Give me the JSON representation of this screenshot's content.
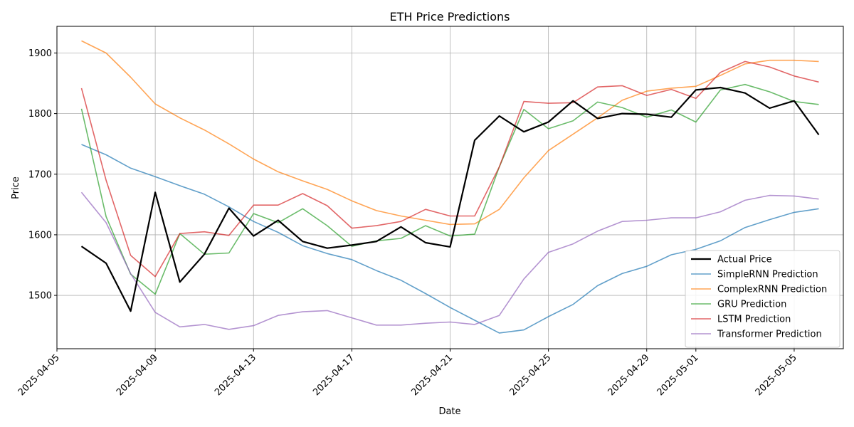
{
  "chart_data": {
    "type": "line",
    "title": "ETH Price Predictions",
    "xlabel": "Date",
    "ylabel": "Price",
    "x_start": "2025-04-06",
    "x": [
      "2025-04-06",
      "2025-04-07",
      "2025-04-08",
      "2025-04-09",
      "2025-04-10",
      "2025-04-11",
      "2025-04-12",
      "2025-04-13",
      "2025-04-14",
      "2025-04-15",
      "2025-04-16",
      "2025-04-17",
      "2025-04-18",
      "2025-04-19",
      "2025-04-20",
      "2025-04-21",
      "2025-04-22",
      "2025-04-23",
      "2025-04-24",
      "2025-04-25",
      "2025-04-26",
      "2025-04-27",
      "2025-04-28",
      "2025-04-29",
      "2025-04-30",
      "2025-05-01",
      "2025-05-02",
      "2025-05-03",
      "2025-05-04",
      "2025-05-05",
      "2025-05-06"
    ],
    "xlim": [
      "2025-04-05",
      "2025-05-07"
    ],
    "ylim": [
      1412,
      1944
    ],
    "x_ticks": [
      "2025-04-05",
      "2025-04-09",
      "2025-04-13",
      "2025-04-17",
      "2025-04-21",
      "2025-04-25",
      "2025-04-29",
      "2025-05-01",
      "2025-05-05"
    ],
    "y_ticks": [
      1500,
      1600,
      1700,
      1800,
      1900
    ],
    "grid": true,
    "legend_position": "lower-right",
    "series": [
      {
        "name": "Actual Price",
        "color": "#000000",
        "width": 2.2,
        "opacity": 1.0,
        "values": [
          1581,
          1553,
          1474,
          1670,
          1522,
          1568,
          1644,
          1598,
          1624,
          1589,
          1578,
          1583,
          1589,
          1613,
          1587,
          1580,
          1756,
          1796,
          1770,
          1786,
          1821,
          1792,
          1800,
          1799,
          1794,
          1839,
          1843,
          1834,
          1809,
          1821,
          1765
        ]
      },
      {
        "name": "SimpleRNN Prediction",
        "color": "#1f77b4",
        "width": 1.6,
        "opacity": 0.7,
        "values": [
          1749,
          1732,
          1710,
          1696,
          1681,
          1667,
          1646,
          1622,
          1604,
          1582,
          1569,
          1559,
          1541,
          1525,
          1503,
          1480,
          1459,
          1438,
          1443,
          1465,
          1485,
          1516,
          1536,
          1548,
          1567,
          1576,
          1590,
          1612,
          1625,
          1637,
          1643
        ]
      },
      {
        "name": "ComplexRNN Prediction",
        "color": "#ff7f0e",
        "width": 1.6,
        "opacity": 0.7,
        "values": [
          1920,
          1900,
          1860,
          1816,
          1793,
          1773,
          1750,
          1725,
          1704,
          1689,
          1675,
          1656,
          1640,
          1631,
          1624,
          1617,
          1618,
          1642,
          1694,
          1739,
          1766,
          1793,
          1822,
          1837,
          1842,
          1845,
          1863,
          1882,
          1888,
          1888,
          1886
        ]
      },
      {
        "name": "GRU Prediction",
        "color": "#2ca02c",
        "width": 1.6,
        "opacity": 0.7,
        "values": [
          1808,
          1630,
          1535,
          1502,
          1602,
          1568,
          1570,
          1635,
          1620,
          1643,
          1615,
          1581,
          1590,
          1594,
          1615,
          1598,
          1601,
          1712,
          1807,
          1775,
          1788,
          1819,
          1810,
          1794,
          1806,
          1786,
          1839,
          1848,
          1836,
          1820,
          1815
        ]
      },
      {
        "name": "LSTM Prediction",
        "color": "#d62728",
        "width": 1.6,
        "opacity": 0.7,
        "values": [
          1842,
          1690,
          1566,
          1531,
          1602,
          1605,
          1599,
          1649,
          1649,
          1668,
          1648,
          1611,
          1615,
          1622,
          1642,
          1631,
          1631,
          1712,
          1820,
          1817,
          1818,
          1844,
          1846,
          1830,
          1840,
          1825,
          1868,
          1886,
          1877,
          1862,
          1852
        ]
      },
      {
        "name": "Transformer Prediction",
        "color": "#9467bd",
        "width": 1.6,
        "opacity": 0.7,
        "values": [
          1670,
          1620,
          1536,
          1472,
          1448,
          1452,
          1444,
          1450,
          1467,
          1473,
          1475,
          1463,
          1451,
          1451,
          1454,
          1456,
          1452,
          1467,
          1527,
          1571,
          1585,
          1606,
          1622,
          1624,
          1628,
          1628,
          1638,
          1657,
          1665,
          1664,
          1659
        ]
      }
    ]
  }
}
